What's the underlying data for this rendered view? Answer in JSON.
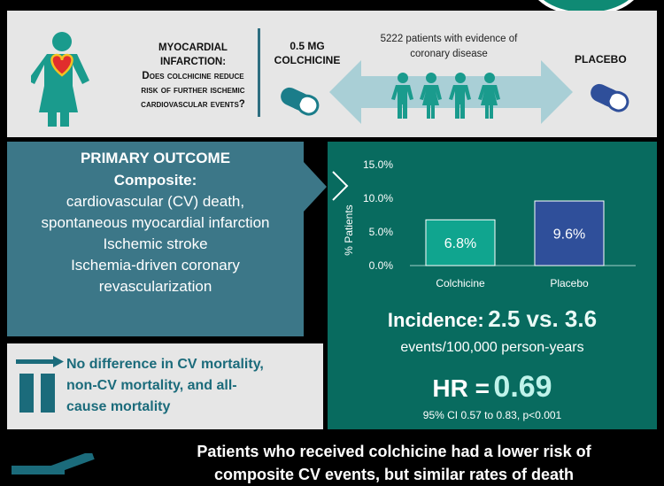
{
  "question": {
    "title_line1": "MYOCARDIAL",
    "title_line2": "INFARCTION:",
    "line3": "Does colchicine reduce",
    "line4": "risk of further ischemic",
    "line5": "cardiovascular events?"
  },
  "arms": {
    "treatment_line1": "0.5 MG",
    "treatment_line2": "COLCHICINE",
    "comparator": "PLACEBO"
  },
  "population": {
    "line1": "5222 patients with evidence of",
    "line2": "coronary disease"
  },
  "primary_outcome": {
    "heading": "PRIMARY OUTCOME",
    "subheading": "Composite:",
    "items": [
      "cardiovascular (CV) death,",
      "spontaneous myocardial infarction",
      "Ischemic stroke",
      "Ischemia-driven coronary",
      "revascularization"
    ]
  },
  "mortality": {
    "line1": "No difference in CV mortality,",
    "line2": "non-CV mortality, and all-",
    "line3": "cause mortality"
  },
  "results": {
    "incidence_label": "Incidence:",
    "incidence_value": "2.5 vs. 3.6",
    "events_unit": "events/100,000 person-years",
    "hr_label": "HR =",
    "hr_value": "0.69",
    "ci_text": "95% CI  0.57 to 0.83, p<0.001"
  },
  "conclusion": {
    "line1": "Patients who received colchicine had a lower risk of",
    "line2": "composite CV events, but similar rates of death"
  },
  "colors": {
    "teal_dark": "#086b5f",
    "teal_mid": "#3c7788",
    "treatment_bar": "#10a58f",
    "placebo_bar": "#2f4f9a",
    "pill_teal": "#1b7d8a",
    "pill_blue": "#2f4f9a",
    "figure_teal": "#1a9b8d"
  },
  "chart_data": {
    "type": "bar",
    "categories": [
      "Colchicine",
      "Placebo"
    ],
    "values": [
      6.8,
      9.6
    ],
    "data_labels": [
      "6.8%",
      "9.6%"
    ],
    "ylabel": "% Patients",
    "yticks": [
      "0.0%",
      "5.0%",
      "10.0%",
      "15.0%"
    ],
    "ylim": [
      0,
      15
    ],
    "grid": false
  }
}
